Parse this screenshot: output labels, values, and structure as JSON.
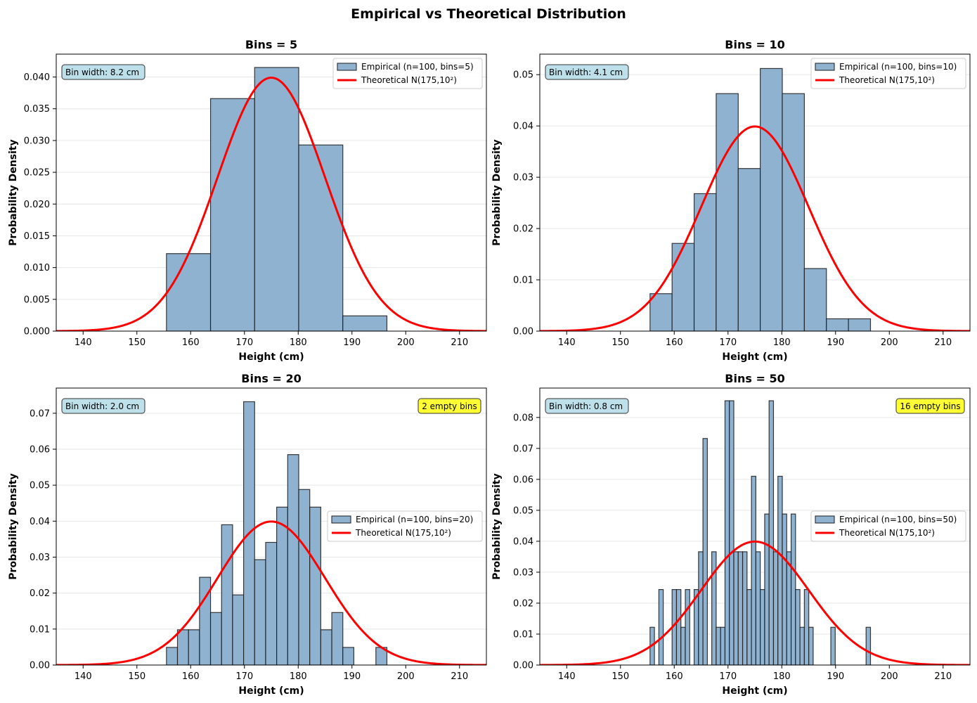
{
  "figure_title": "Empirical vs Theoretical Distribution",
  "colors": {
    "bar_fill": "#90b2d1",
    "bar_edge": "#1a1a1a",
    "curve": "#ff0000",
    "grid": "#e6e6e6",
    "info_box": "#add8e6",
    "warn_box": "#ffff33"
  },
  "chart_data": [
    {
      "type": "bar",
      "title": "Bins = 5",
      "xlabel": "Height (cm)",
      "ylabel": "Probability Density",
      "xlim": [
        135,
        215
      ],
      "ylim": [
        0,
        0.0436
      ],
      "xticks": [
        140,
        150,
        160,
        170,
        180,
        190,
        200,
        210
      ],
      "yticks": [
        0,
        0.005,
        0.01,
        0.015,
        0.02,
        0.025,
        0.03,
        0.035,
        0.04
      ],
      "ytick_labels": [
        "0.000",
        "0.005",
        "0.010",
        "0.015",
        "0.020",
        "0.025",
        "0.030",
        "0.035",
        "0.040"
      ],
      "bin_edges": [
        155.5,
        163.7,
        171.9,
        180.1,
        188.3,
        196.5
      ],
      "values": [
        0.0122,
        0.0366,
        0.0415,
        0.0293,
        0.0024
      ],
      "series": [
        {
          "name": "Empirical (n=100, bins=5)",
          "kind": "histogram"
        },
        {
          "name": "Theoretical N(175,10²)",
          "kind": "normal_pdf",
          "mean": 175,
          "sd": 10
        }
      ],
      "legend_position": "upper right",
      "info_label": "Bin width: 8.2 cm",
      "warning_label": ""
    },
    {
      "type": "bar",
      "title": "Bins = 10",
      "xlabel": "Height (cm)",
      "ylabel": "Probability Density",
      "xlim": [
        135,
        215
      ],
      "ylim": [
        0,
        0.054
      ],
      "xticks": [
        140,
        150,
        160,
        170,
        180,
        190,
        200,
        210
      ],
      "yticks": [
        0,
        0.01,
        0.02,
        0.03,
        0.04,
        0.05
      ],
      "ytick_labels": [
        "0.00",
        "0.01",
        "0.02",
        "0.03",
        "0.04",
        "0.05"
      ],
      "bin_edges": [
        155.5,
        159.6,
        163.7,
        167.8,
        171.9,
        176.0,
        180.1,
        184.2,
        188.3,
        192.4,
        196.5
      ],
      "values": [
        0.0073,
        0.0171,
        0.0268,
        0.0463,
        0.0317,
        0.0512,
        0.0463,
        0.0122,
        0.0024,
        0.0024
      ],
      "series": [
        {
          "name": "Empirical (n=100, bins=10)",
          "kind": "histogram"
        },
        {
          "name": "Theoretical N(175,10²)",
          "kind": "normal_pdf",
          "mean": 175,
          "sd": 10
        }
      ],
      "legend_position": "upper right",
      "info_label": "Bin width: 4.1 cm",
      "warning_label": ""
    },
    {
      "type": "bar",
      "title": "Bins = 20",
      "xlabel": "Height (cm)",
      "ylabel": "Probability Density",
      "xlim": [
        135,
        215
      ],
      "ylim": [
        0,
        0.077
      ],
      "xticks": [
        140,
        150,
        160,
        170,
        180,
        190,
        200,
        210
      ],
      "yticks": [
        0,
        0.01,
        0.02,
        0.03,
        0.04,
        0.05,
        0.06,
        0.07
      ],
      "ytick_labels": [
        "0.00",
        "0.01",
        "0.02",
        "0.03",
        "0.04",
        "0.05",
        "0.06",
        "0.07"
      ],
      "bin_edges": [
        155.5,
        157.55,
        159.6,
        161.65,
        163.7,
        165.75,
        167.8,
        169.85,
        171.9,
        173.95,
        176.0,
        178.05,
        180.1,
        182.15,
        184.2,
        186.25,
        188.3,
        190.35,
        192.4,
        194.45,
        196.5
      ],
      "values": [
        0.0049,
        0.0098,
        0.0098,
        0.0244,
        0.0146,
        0.039,
        0.0195,
        0.0732,
        0.0293,
        0.0341,
        0.0439,
        0.0585,
        0.0488,
        0.0439,
        0.0098,
        0.0146,
        0.0049,
        0,
        0,
        0.0049
      ],
      "series": [
        {
          "name": "Empirical (n=100, bins=20)",
          "kind": "histogram"
        },
        {
          "name": "Theoretical N(175,10²)",
          "kind": "normal_pdf",
          "mean": 175,
          "sd": 10
        }
      ],
      "legend_position": "center right",
      "info_label": "Bin width: 2.0 cm",
      "warning_label": "2 empty bins"
    },
    {
      "type": "bar",
      "title": "Bins = 50",
      "xlabel": "Height (cm)",
      "ylabel": "Probability Density",
      "xlim": [
        135,
        215
      ],
      "ylim": [
        0,
        0.0895
      ],
      "xticks": [
        140,
        150,
        160,
        170,
        180,
        190,
        200,
        210
      ],
      "yticks": [
        0,
        0.01,
        0.02,
        0.03,
        0.04,
        0.05,
        0.06,
        0.07,
        0.08
      ],
      "ytick_labels": [
        "0.00",
        "0.01",
        "0.02",
        "0.03",
        "0.04",
        "0.05",
        "0.06",
        "0.07",
        "0.08"
      ],
      "bin_edges": [
        155.5,
        156.32,
        157.14,
        157.96,
        158.78,
        159.6,
        160.42,
        161.24,
        162.06,
        162.88,
        163.7,
        164.52,
        165.34,
        166.16,
        166.98,
        167.8,
        168.62,
        169.44,
        170.26,
        171.08,
        171.9,
        172.72,
        173.54,
        174.36,
        175.18,
        176.0,
        176.82,
        177.64,
        178.46,
        179.28,
        180.1,
        180.92,
        181.74,
        182.56,
        183.38,
        184.2,
        185.02,
        185.84,
        186.66,
        187.48,
        188.3,
        189.12,
        189.94,
        190.76,
        191.58,
        192.4,
        193.22,
        194.04,
        194.86,
        195.68,
        196.5
      ],
      "values": [
        0.0122,
        0,
        0.0244,
        0,
        0,
        0.0244,
        0.0244,
        0.0122,
        0.0244,
        0,
        0.0244,
        0.0366,
        0.0732,
        0,
        0.0366,
        0.0122,
        0.0122,
        0.0854,
        0.0854,
        0.0366,
        0.0366,
        0.0366,
        0.0244,
        0.061,
        0.0366,
        0.0244,
        0.0488,
        0.0854,
        0.0366,
        0.061,
        0.0488,
        0.0366,
        0.0488,
        0.0244,
        0.0122,
        0.0244,
        0.0122,
        0,
        0,
        0,
        0,
        0.0122,
        0,
        0,
        0,
        0,
        0,
        0,
        0,
        0.0122
      ],
      "series": [
        {
          "name": "Empirical (n=100, bins=50)",
          "kind": "histogram"
        },
        {
          "name": "Theoretical N(175,10²)",
          "kind": "normal_pdf",
          "mean": 175,
          "sd": 10
        }
      ],
      "legend_position": "center right",
      "info_label": "Bin width: 0.8 cm",
      "warning_label": "16 empty bins"
    }
  ]
}
